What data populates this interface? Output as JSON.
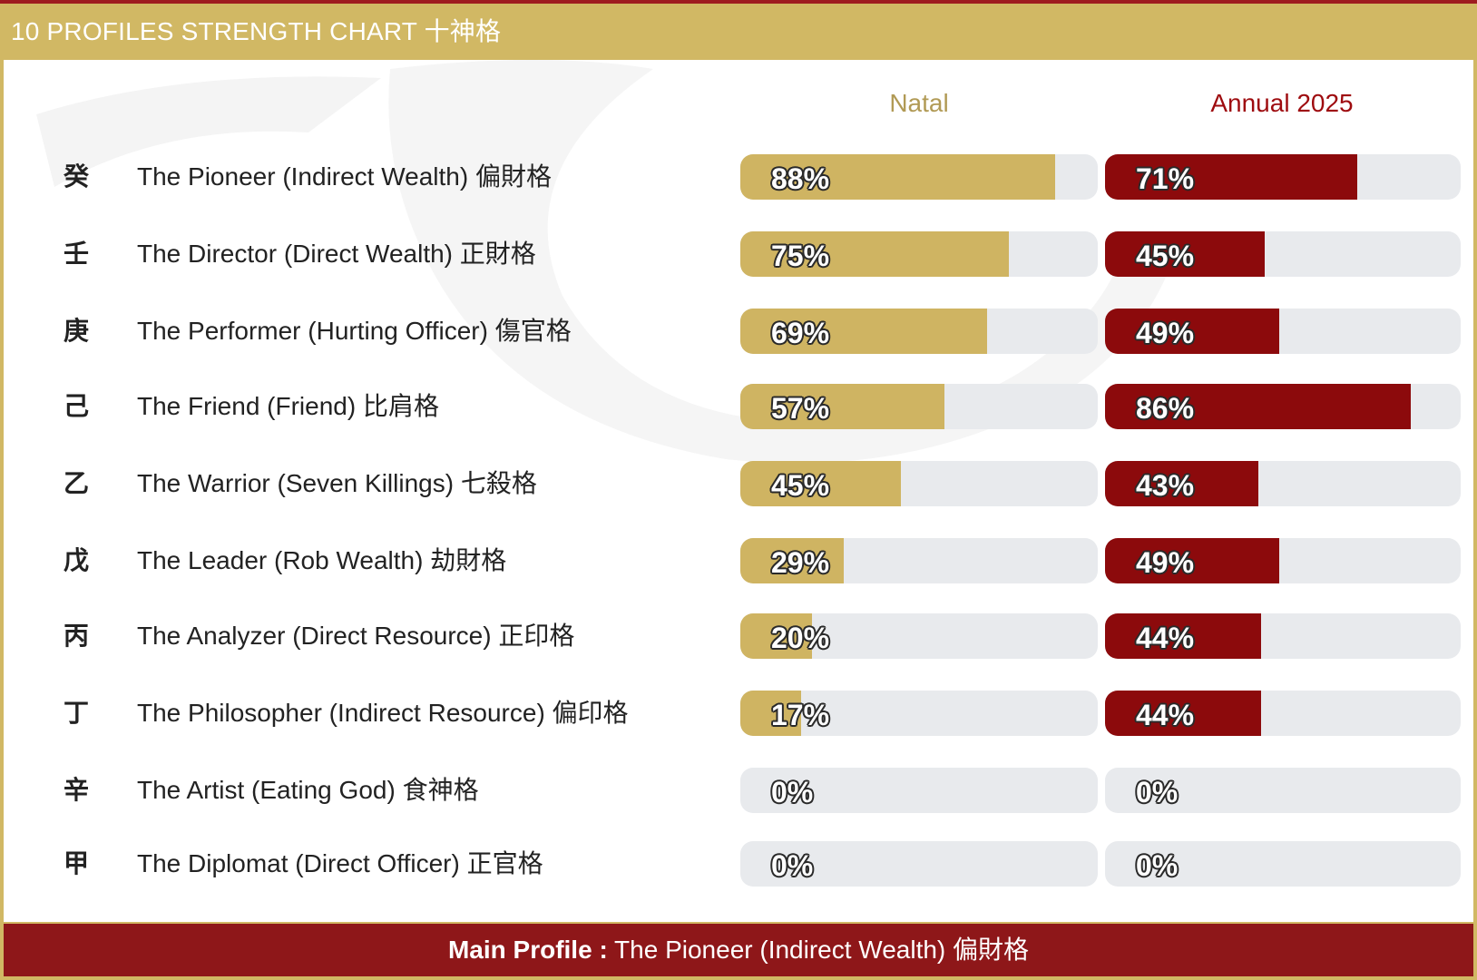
{
  "header": {
    "title": "10 PROFILES STRENGTH CHART 十神格"
  },
  "columns": {
    "natal": "Natal",
    "annual": "Annual 2025"
  },
  "colors": {
    "gold": "#cfb462",
    "crimson": "#8c0a0c",
    "track": "#e8eaed"
  },
  "rows": [
    {
      "stem": "癸",
      "label": "The Pioneer (Indirect Wealth) 偏財格",
      "natal": "88%",
      "annual": "71%"
    },
    {
      "stem": "壬",
      "label": "The Director (Direct Wealth) 正財格",
      "natal": "75%",
      "annual": "45%"
    },
    {
      "stem": "庚",
      "label": "The Performer (Hurting Officer) 傷官格",
      "natal": "69%",
      "annual": "49%"
    },
    {
      "stem": "己",
      "label": "The Friend (Friend) 比肩格",
      "natal": "57%",
      "annual": "86%"
    },
    {
      "stem": "乙",
      "label": "The Warrior (Seven Killings) 七殺格",
      "natal": "45%",
      "annual": "43%"
    },
    {
      "stem": "戊",
      "label": "The Leader (Rob Wealth) 劫財格",
      "natal": "29%",
      "annual": "49%"
    },
    {
      "stem": "丙",
      "label": "The Analyzer (Direct Resource) 正印格",
      "natal": "20%",
      "annual": "44%"
    },
    {
      "stem": "丁",
      "label": "The Philosopher (Indirect Resource) 偏印格",
      "natal": "17%",
      "annual": "44%"
    },
    {
      "stem": "辛",
      "label": "The Artist (Eating God) 食神格",
      "natal": "0%",
      "annual": "0%"
    },
    {
      "stem": "甲",
      "label": "The Diplomat (Direct Officer) 正官格",
      "natal": "0%",
      "annual": "0%"
    }
  ],
  "chart_data": {
    "type": "bar",
    "orientation": "horizontal",
    "categories": [
      "The Pioneer (Indirect Wealth) 偏財格",
      "The Director (Direct Wealth) 正財格",
      "The Performer (Hurting Officer) 傷官格",
      "The Friend (Friend) 比肩格",
      "The Warrior (Seven Killings) 七殺格",
      "The Leader (Rob Wealth) 劫財格",
      "The Analyzer (Direct Resource) 正印格",
      "The Philosopher (Indirect Resource) 偏印格",
      "The Artist (Eating God) 食神格",
      "The Diplomat (Direct Officer) 正官格"
    ],
    "series": [
      {
        "name": "Natal",
        "values": [
          88,
          75,
          69,
          57,
          45,
          29,
          20,
          17,
          0,
          0
        ]
      },
      {
        "name": "Annual 2025",
        "values": [
          71,
          45,
          49,
          86,
          43,
          49,
          44,
          44,
          0,
          0
        ]
      }
    ],
    "title": "10 PROFILES STRENGTH CHART 十神格",
    "xlim": [
      0,
      100
    ],
    "unit": "%"
  },
  "footer": {
    "prefix": "Main Profile :",
    "value": "The Pioneer (Indirect Wealth) 偏財格"
  }
}
